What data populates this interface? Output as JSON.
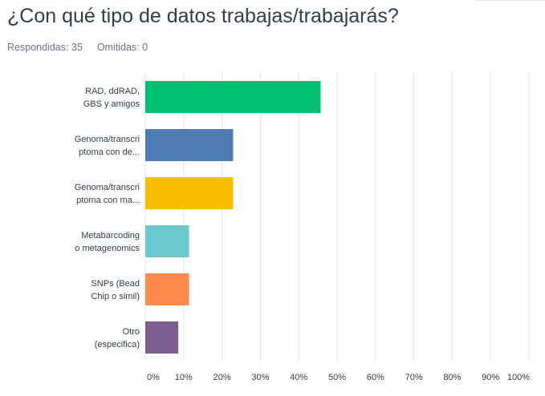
{
  "question": {
    "title": "¿Con qué tipo de datos trabajas/trabajarás?",
    "answered_label": "Respondidas: 35",
    "skipped_label": "Omitidas: 0"
  },
  "chart_data": {
    "type": "bar",
    "orientation": "horizontal",
    "categories": [
      [
        "RAD, ddRAD,",
        "GBS y amigos"
      ],
      [
        "Genoma/transcri",
        "ptoma con de..."
      ],
      [
        "Genoma/transcri",
        "ptoma con ma..."
      ],
      [
        "Metabarcoding",
        "o metagenomics"
      ],
      [
        "SNPs (Bead",
        "Chip o simil)"
      ],
      [
        "Otro",
        "(especifica)"
      ]
    ],
    "values": [
      45.7,
      22.9,
      22.9,
      11.4,
      11.4,
      8.6
    ],
    "colors": [
      "#00bf6f",
      "#507cb6",
      "#f9be00",
      "#6bc8cd",
      "#ff8b4f",
      "#7d5e90"
    ],
    "xlim": [
      0,
      100
    ],
    "ticks": [
      0,
      10,
      20,
      30,
      40,
      50,
      60,
      70,
      80,
      90,
      100
    ],
    "tick_labels": [
      "0%",
      "10%",
      "20%",
      "30%",
      "40%",
      "50%",
      "60%",
      "70%",
      "80%",
      "90%",
      "100%"
    ],
    "grid": true
  }
}
